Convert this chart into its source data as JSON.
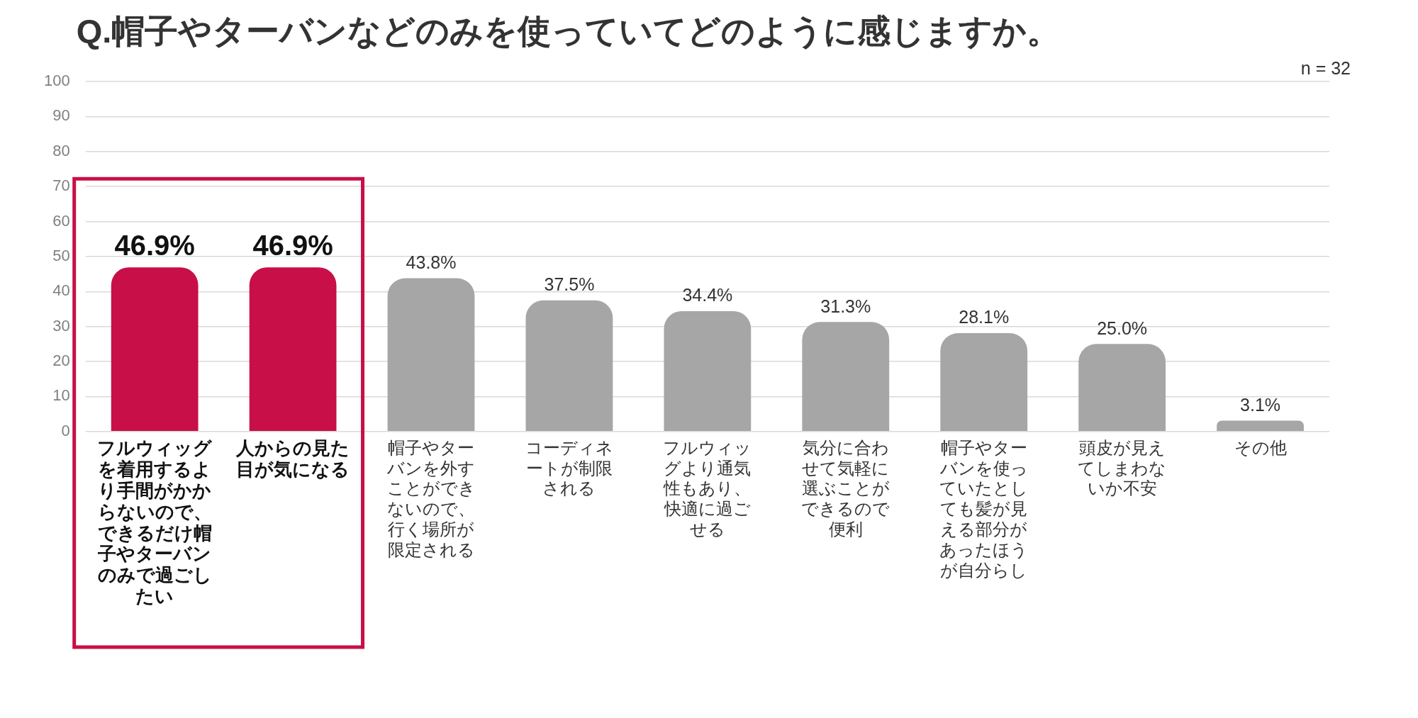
{
  "chart_data": {
    "type": "bar",
    "title": "Q.帽子やターバンなどのみを使っていてどのように感じますか。",
    "annotations": [
      "n = 32"
    ],
    "categories": [
      "フルウィッグを着用するより手間がかからないので、できるだけ帽子やターバンのみで過ごしたい",
      "人からの見た目が気になる",
      "帽子やターバンを外すことができないので、行く場所が限定される",
      "コーディネートが制限される",
      "フルウィッグより通気性もあり、快適に過ごせる",
      "気分に合わせて気軽に選ぶことができるので便利",
      "帽子やターバンを使っていたとしても髪が見える部分があったほうが自分らし",
      "頭皮が見えてしまわないか不安",
      "その他"
    ],
    "values": [
      46.9,
      46.9,
      43.8,
      37.5,
      34.4,
      31.3,
      28.1,
      25.0,
      3.1
    ],
    "colors": [
      "#c80f47",
      "#c80f47",
      "#a6a6a6",
      "#a6a6a6",
      "#a6a6a6",
      "#a6a6a6",
      "#a6a6a6",
      "#a6a6a6",
      "#a6a6a6"
    ],
    "value_labels": [
      "46.9%",
      "46.9%",
      "43.8%",
      "37.5%",
      "34.4%",
      "31.3%",
      "28.1%",
      "25.0%",
      "3.1%"
    ],
    "ylim": [
      0,
      100
    ],
    "yticks": [
      0,
      10,
      20,
      30,
      40,
      50,
      60,
      70,
      80,
      90,
      100
    ],
    "grid": "y"
  }
}
